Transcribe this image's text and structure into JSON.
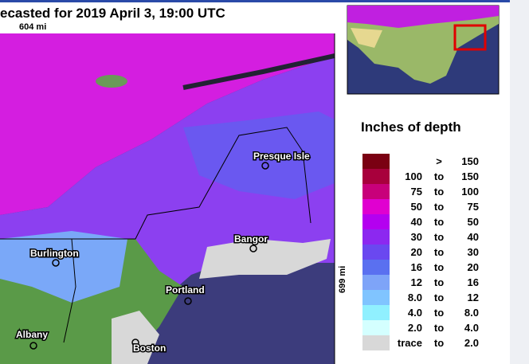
{
  "header": {
    "title": "ecasted for 2019 April 3, 19:00 UTC",
    "width_label": "604 mi",
    "height_label": "699 mi"
  },
  "cities": [
    "Presque Isle",
    "Bangor",
    "Burlington",
    "Portland",
    "Albany",
    "Boston"
  ],
  "legend": {
    "title": "Inches of depth",
    "rows": [
      {
        "low": ">",
        "high": "150",
        "color": "#7a0012"
      },
      {
        "low": "100",
        "sep": "to",
        "high": "150",
        "color": "#a8003c"
      },
      {
        "low": "75",
        "sep": "to",
        "high": "100",
        "color": "#c8007a"
      },
      {
        "low": "50",
        "sep": "to",
        "high": "75",
        "color": "#e000d0"
      },
      {
        "low": "40",
        "sep": "to",
        "high": "50",
        "color": "#b400f0"
      },
      {
        "low": "30",
        "sep": "to",
        "high": "40",
        "color": "#8c28f0"
      },
      {
        "low": "20",
        "sep": "to",
        "high": "30",
        "color": "#6a48f0"
      },
      {
        "low": "16",
        "sep": "to",
        "high": "20",
        "color": "#5a70f0"
      },
      {
        "low": "12",
        "sep": "to",
        "high": "16",
        "color": "#7ea4f8"
      },
      {
        "low": "8.0",
        "sep": "to",
        "high": "12",
        "color": "#80c4ff"
      },
      {
        "low": "4.0",
        "sep": "to",
        "high": "8.0",
        "color": "#90f0ff"
      },
      {
        "low": "2.0",
        "sep": "to",
        "high": "4.0",
        "color": "#d4ffff"
      },
      {
        "low": "trace",
        "sep": "to",
        "high": "2.0",
        "color": "#d8d8d8"
      }
    ]
  }
}
